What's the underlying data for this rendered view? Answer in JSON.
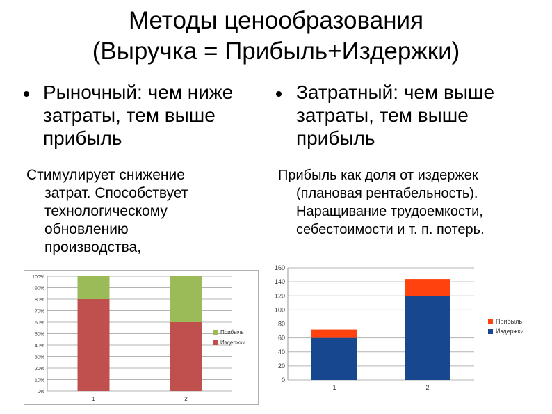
{
  "title": {
    "line1": "Методы ценообразования",
    "line2": "(Выручка = Прибыль+Издержки)"
  },
  "left": {
    "bullet_lines": [
      "Рыночный: чем ниже",
      "затраты, тем выше",
      "прибыль"
    ],
    "para_first": "Стимулирует снижение",
    "para_rest": [
      "затрат. Способствует",
      "технологическому",
      "обновлению",
      "производства,"
    ]
  },
  "right": {
    "bullet_lines": [
      "Затратный: чем выше",
      "затраты, тем выше",
      "прибыль"
    ],
    "para_first": "Прибыль как доля от издержек",
    "para_rest": [
      "(плановая рентабельность).",
      "Наращивание трудоемкости,",
      "себестоимости и т. п. потерь."
    ]
  },
  "chart_data": [
    {
      "type": "bar",
      "stacked": true,
      "categories": [
        "1",
        "2"
      ],
      "series": [
        {
          "name": "Издержки",
          "values": [
            80,
            60
          ],
          "color": "#c0504d"
        },
        {
          "name": "Прибыль",
          "values": [
            20,
            40
          ],
          "color": "#9bbb59"
        }
      ],
      "yticks": [
        "0%",
        "10%",
        "20%",
        "30%",
        "40%",
        "50%",
        "60%",
        "70%",
        "80%",
        "90%",
        "100%"
      ],
      "ylim": [
        0,
        100
      ],
      "legend_order": [
        "Прибыль",
        "Издержки"
      ],
      "legend": "right",
      "grid": true
    },
    {
      "type": "bar",
      "stacked": true,
      "categories": [
        "1",
        "2"
      ],
      "series": [
        {
          "name": "Издержки",
          "values": [
            60,
            120
          ],
          "color": "#17478f"
        },
        {
          "name": "Прибыль",
          "values": [
            12,
            24
          ],
          "color": "#ff420e"
        }
      ],
      "yticks": [
        "0",
        "20",
        "40",
        "60",
        "80",
        "100",
        "120",
        "140",
        "160"
      ],
      "ylim": [
        0,
        160
      ],
      "legend_order": [
        "Прибыль",
        "Издержки"
      ],
      "legend": "right",
      "grid": true
    }
  ]
}
